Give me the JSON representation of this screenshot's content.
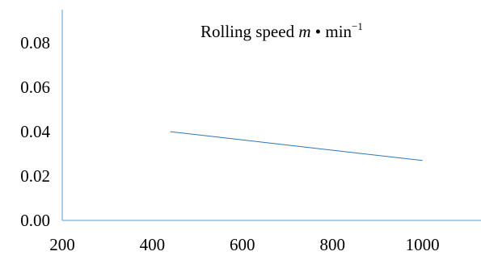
{
  "chart_data": {
    "type": "line",
    "title_parts": {
      "main": "Rolling speed ",
      "var": "m",
      "dot": " • ",
      "unit": "min",
      "exp": "−1"
    },
    "xlabel": "",
    "ylabel": "",
    "xlim": [
      200,
      1130
    ],
    "ylim": [
      0.0,
      0.095
    ],
    "x_ticks": [
      "200",
      "400",
      "600",
      "800",
      "1000"
    ],
    "y_ticks": [
      "0.00",
      "0.02",
      "0.04",
      "0.06",
      "0.08"
    ],
    "grid": false,
    "series": [
      {
        "x": [
          440,
          1000
        ],
        "y": [
          0.04,
          0.027
        ]
      }
    ],
    "colors": {
      "axis": "#5b9bd5",
      "line": "#2e75b6",
      "text": "#000000"
    }
  }
}
